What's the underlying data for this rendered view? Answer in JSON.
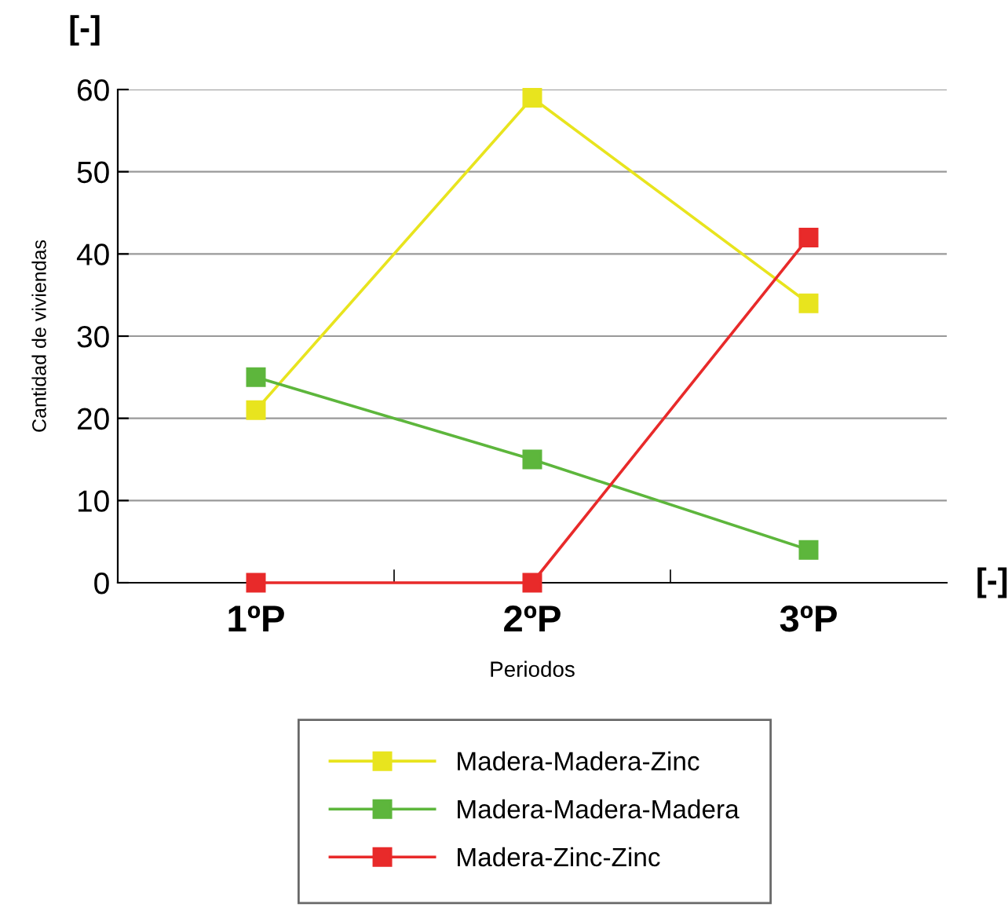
{
  "chart_data": {
    "type": "line",
    "xlabel": "Periodos",
    "ylabel": "Cantidad de viviendas",
    "annotations": [
      "[-]",
      "[-]"
    ],
    "categories": [
      "1ºP",
      "2ºP",
      "3ºP"
    ],
    "series": [
      {
        "name": "Madera-Madera-Zinc",
        "color": "#e8e41e",
        "values": [
          21,
          59,
          34
        ]
      },
      {
        "name": "Madera-Madera-Madera",
        "color": "#5db63c",
        "values": [
          25,
          15,
          4
        ]
      },
      {
        "name": "Madera-Zinc-Zinc",
        "color": "#e82a2a",
        "values": [
          0,
          0,
          42
        ]
      }
    ],
    "ylim": [
      0,
      60
    ],
    "yticks": [
      0,
      10,
      20,
      30,
      40,
      50,
      60
    ],
    "grid": "y",
    "legend": "bottom",
    "marker": "square",
    "line_style": "solid"
  }
}
